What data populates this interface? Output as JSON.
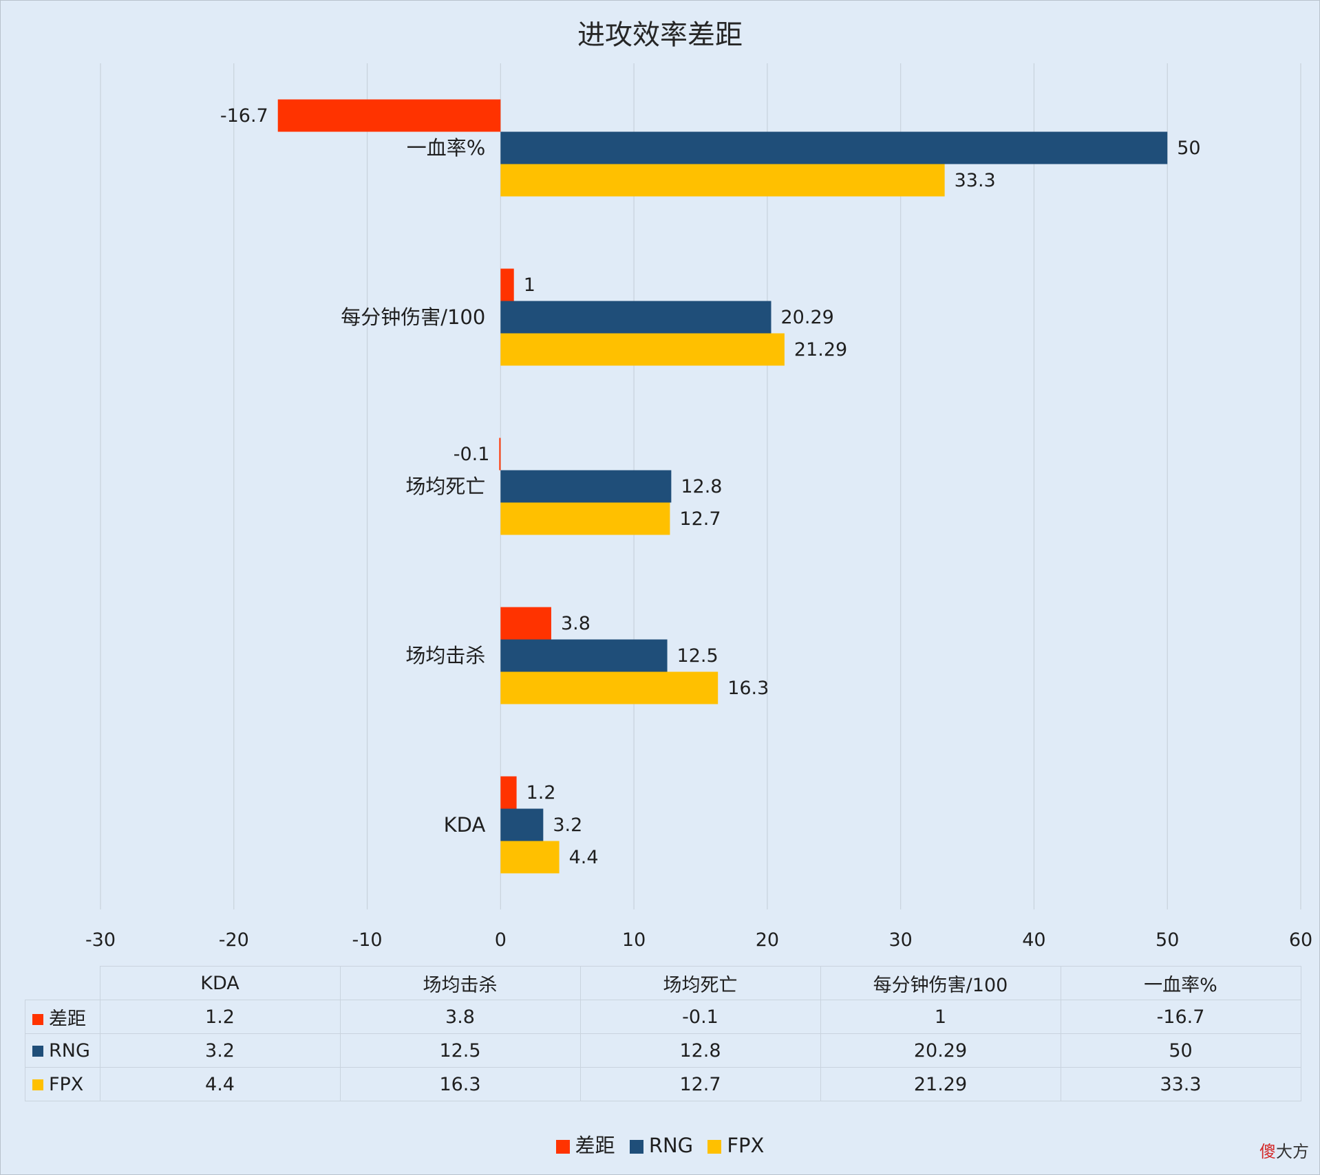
{
  "chart_data": {
    "type": "bar",
    "orientation": "horizontal",
    "title": "进攻效率差距",
    "categories": [
      "KDA",
      "场均击杀",
      "场均死亡",
      "每分钟伤害/100",
      "一血率%"
    ],
    "series": [
      {
        "name": "差距",
        "color": "#ff3300",
        "values": [
          1.2,
          3.8,
          -0.1,
          1,
          -16.7
        ]
      },
      {
        "name": "RNG",
        "color": "#1f4e79",
        "values": [
          3.2,
          12.5,
          12.8,
          20.29,
          50
        ]
      },
      {
        "name": "FPX",
        "color": "#ffc000",
        "values": [
          4.4,
          16.3,
          12.7,
          21.29,
          33.3
        ]
      }
    ],
    "value_labels": [
      [
        "1.2",
        "3.8",
        "-0.1",
        "1",
        "-16.7"
      ],
      [
        "3.2",
        "12.5",
        "12.8",
        "20.29",
        "50"
      ],
      [
        "4.4",
        "16.3",
        "12.7",
        "21.29",
        "33.3"
      ]
    ],
    "xlim": [
      -30,
      60
    ],
    "xticks": [
      -30,
      -20,
      -10,
      0,
      10,
      20,
      30,
      40,
      50,
      60
    ],
    "xtick_labels": [
      "-30",
      "-20",
      "-10",
      "0",
      "10",
      "20",
      "30",
      "40",
      "50",
      "60"
    ],
    "grid": true,
    "legend_position": "bottom",
    "data_table": true
  },
  "watermark": {
    "part1": "傻",
    "part2": "大方"
  }
}
